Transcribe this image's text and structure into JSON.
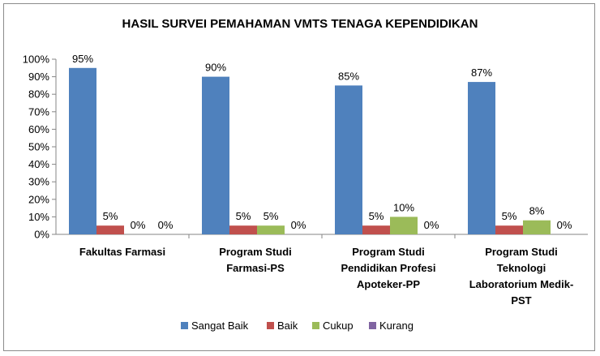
{
  "chart_data": {
    "type": "bar",
    "title": "HASIL SURVEI PEMAHAMAN VMTS TENAGA KEPENDIDIKAN",
    "xlabel": "",
    "ylabel": "",
    "ylim": [
      0,
      100
    ],
    "y_ticks": [
      "0%",
      "10%",
      "20%",
      "30%",
      "40%",
      "50%",
      "60%",
      "70%",
      "80%",
      "90%",
      "100%"
    ],
    "grid": false,
    "legend_position": "bottom",
    "categories": [
      [
        "Fakultas Farmasi"
      ],
      [
        "Program Studi",
        "Farmasi-PS"
      ],
      [
        "Program Studi",
        "Pendidikan Profesi",
        "Apoteker-PP"
      ],
      [
        "Program Studi",
        "Teknologi",
        "Laboratorium Medik-",
        "PST"
      ]
    ],
    "series": [
      {
        "name": "Sangat Baik",
        "color": "#4f81bd",
        "values": [
          95,
          90,
          85,
          87
        ],
        "labels": [
          "95%",
          "90%",
          "85%",
          "87%"
        ]
      },
      {
        "name": "Baik",
        "color": "#c0504d",
        "values": [
          5,
          5,
          5,
          5
        ],
        "labels": [
          "5%",
          "5%",
          "5%",
          "5%"
        ]
      },
      {
        "name": "Cukup",
        "color": "#9bbb59",
        "values": [
          0,
          5,
          10,
          8
        ],
        "labels": [
          "0%",
          "5%",
          "10%",
          "8%"
        ]
      },
      {
        "name": "Kurang",
        "color": "#8064a2",
        "values": [
          0,
          0,
          0,
          0
        ],
        "labels": [
          "0%",
          "0%",
          "0%",
          "0%"
        ]
      }
    ]
  }
}
